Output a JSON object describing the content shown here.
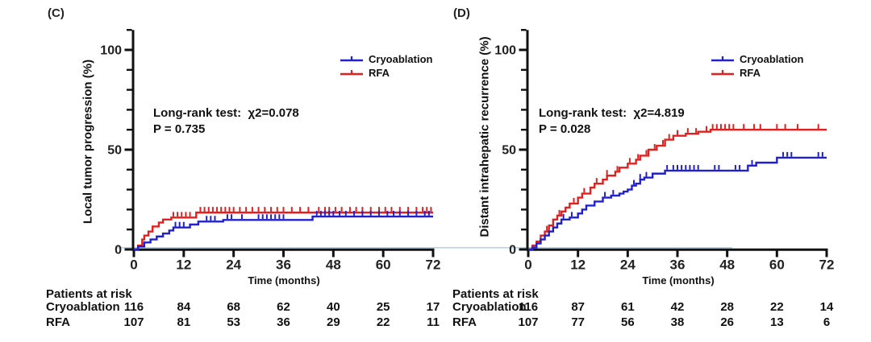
{
  "colors": {
    "cryo": "#2120ce",
    "rfa": "#e1201f",
    "baseline": "#a8cbe8",
    "axis": "#111111"
  },
  "legend": {
    "cryo": "Cryoablation",
    "rfa": "RFA"
  },
  "panels": [
    {
      "label": "(C)",
      "ylabel": "Local tumor progression (%)",
      "xlabel": "Time (months)",
      "stats_line1": "Long-rank test:  χ2=0.078",
      "stats_line2": "P = 0.735",
      "at_risk_title": "Patients at risk"
    },
    {
      "label": "(D)",
      "ylabel": "Distant intrahepatic recurrence (%)",
      "xlabel": "Time (months)",
      "stats_line1": "Long-rank test:  χ2=4.819",
      "stats_line2": "P = 0.028",
      "at_risk_title": "Patients at risk"
    }
  ],
  "chart_data": [
    {
      "type": "line",
      "panel": "C",
      "title": "Local tumor progression (%)",
      "xlabel": "Time (months)",
      "xticks": [
        0,
        12,
        24,
        36,
        48,
        60,
        72
      ],
      "ytick_labels": [
        0,
        50,
        100
      ],
      "xlim": [
        0,
        72
      ],
      "ylim": [
        0,
        110
      ],
      "stat_chi2": 0.078,
      "p_value": 0.735,
      "series": [
        {
          "name": "RFA",
          "color_key": "rfa",
          "steps": [
            [
              0,
              0
            ],
            [
              1,
              2
            ],
            [
              2,
              5
            ],
            [
              2.5,
              7
            ],
            [
              3.5,
              9
            ],
            [
              4.5,
              11.5
            ],
            [
              6,
              13.5
            ],
            [
              7,
              15
            ],
            [
              9,
              16
            ],
            [
              15,
              18.5
            ],
            [
              72,
              18.5
            ]
          ],
          "censors": [
            9.5,
            10.5,
            11.5,
            12.5,
            13.5,
            16,
            17,
            18,
            19,
            20,
            21,
            22,
            23,
            24,
            25.5,
            27,
            28.5,
            30,
            31.5,
            33,
            34.5,
            36,
            38,
            40,
            42,
            44.5,
            46,
            47,
            48.5,
            50,
            52,
            53.5,
            55,
            57,
            59,
            60.5,
            62,
            64,
            66,
            68,
            69.5,
            70.5,
            71.5
          ]
        },
        {
          "name": "Cryoablation",
          "color_key": "cryo",
          "steps": [
            [
              0,
              0
            ],
            [
              1,
              1.5
            ],
            [
              2.5,
              3.5
            ],
            [
              4,
              5
            ],
            [
              5.5,
              6.5
            ],
            [
              7,
              8
            ],
            [
              8.5,
              9.5
            ],
            [
              9.5,
              11
            ],
            [
              13.5,
              12.5
            ],
            [
              15.5,
              14
            ],
            [
              21.5,
              14.8
            ],
            [
              43,
              16.5
            ],
            [
              72,
              16.5
            ]
          ],
          "censors": [
            10,
            11,
            12,
            17.5,
            18.5,
            19.5,
            22.5,
            23.5,
            26,
            30,
            31,
            32,
            33,
            34,
            35,
            36,
            44,
            45,
            46,
            47,
            48,
            49.5,
            51,
            53,
            55,
            57,
            59,
            61,
            62.5,
            64,
            66,
            68,
            70,
            71
          ]
        }
      ],
      "at_risk": {
        "time_points": [
          0,
          12,
          24,
          36,
          48,
          60,
          72
        ],
        "rows": [
          {
            "label": "Cryoablation",
            "values": [
              116,
              84,
              68,
              62,
              40,
              25,
              17
            ]
          },
          {
            "label": "RFA",
            "values": [
              107,
              81,
              53,
              36,
              29,
              22,
              11
            ]
          }
        ]
      }
    },
    {
      "type": "line",
      "panel": "D",
      "title": "Distant intrahepatic recurrence (%)",
      "xlabel": "Time (months)",
      "xticks": [
        0,
        12,
        24,
        36,
        48,
        60,
        72
      ],
      "ytick_labels": [
        0,
        50,
        100
      ],
      "xlim": [
        0,
        72
      ],
      "ylim": [
        0,
        110
      ],
      "stat_chi2": 4.819,
      "p_value": 0.028,
      "series": [
        {
          "name": "RFA",
          "color_key": "rfa",
          "steps": [
            [
              0,
              0
            ],
            [
              1,
              2
            ],
            [
              2,
              4
            ],
            [
              3,
              7
            ],
            [
              4,
              9
            ],
            [
              5,
              12
            ],
            [
              6,
              15
            ],
            [
              7,
              17
            ],
            [
              8,
              19
            ],
            [
              9,
              21
            ],
            [
              10,
              23
            ],
            [
              12,
              26
            ],
            [
              13,
              28
            ],
            [
              15,
              31
            ],
            [
              16,
              33
            ],
            [
              18,
              35
            ],
            [
              19,
              37
            ],
            [
              21,
              39
            ],
            [
              22,
              41
            ],
            [
              24,
              43
            ],
            [
              26,
              45
            ],
            [
              27,
              47
            ],
            [
              29,
              50
            ],
            [
              31,
              52
            ],
            [
              33,
              55
            ],
            [
              35,
              57
            ],
            [
              38,
              58
            ],
            [
              41,
              59
            ],
            [
              44,
              60
            ],
            [
              72,
              60
            ]
          ],
          "censors": [
            4.5,
            7.5,
            11,
            13.5,
            16.5,
            19,
            21.5,
            24.5,
            26.5,
            28.5,
            30.5,
            32.5,
            34,
            36,
            38.5,
            40.5,
            43,
            44.5,
            45.5,
            46.5,
            47.5,
            48.5,
            49.5,
            52,
            54.5,
            56,
            60,
            62,
            65,
            70
          ]
        },
        {
          "name": "Cryoablation",
          "color_key": "cryo",
          "steps": [
            [
              0,
              0
            ],
            [
              1,
              1
            ],
            [
              2,
              3
            ],
            [
              3,
              5
            ],
            [
              4,
              7
            ],
            [
              5,
              9
            ],
            [
              6,
              11
            ],
            [
              7,
              13
            ],
            [
              8,
              15
            ],
            [
              10,
              16
            ],
            [
              12,
              18
            ],
            [
              13,
              20
            ],
            [
              14,
              22
            ],
            [
              16,
              24
            ],
            [
              18,
              26
            ],
            [
              20,
              27
            ],
            [
              22,
              28
            ],
            [
              23,
              29
            ],
            [
              24,
              30
            ],
            [
              25,
              32
            ],
            [
              26,
              33
            ],
            [
              27,
              35
            ],
            [
              28,
              36
            ],
            [
              30,
              38
            ],
            [
              33,
              39.5
            ],
            [
              53,
              42
            ],
            [
              55,
              43.5
            ],
            [
              60,
              46
            ],
            [
              72,
              46
            ]
          ],
          "censors": [
            8.5,
            10.5,
            18.5,
            20.5,
            25.5,
            27,
            28.5,
            33.5,
            35,
            36,
            37,
            38,
            39,
            40,
            41,
            45,
            46,
            50,
            51,
            54,
            61.5,
            62.5,
            63.5,
            70,
            71
          ]
        }
      ],
      "at_risk": {
        "time_points": [
          0,
          12,
          24,
          36,
          48,
          60,
          72
        ],
        "rows": [
          {
            "label": "Cryoablation",
            "values": [
              116,
              87,
              61,
              42,
              28,
              22,
              14
            ]
          },
          {
            "label": "RFA",
            "values": [
              107,
              77,
              56,
              38,
              26,
              13,
              6
            ]
          }
        ]
      }
    }
  ]
}
